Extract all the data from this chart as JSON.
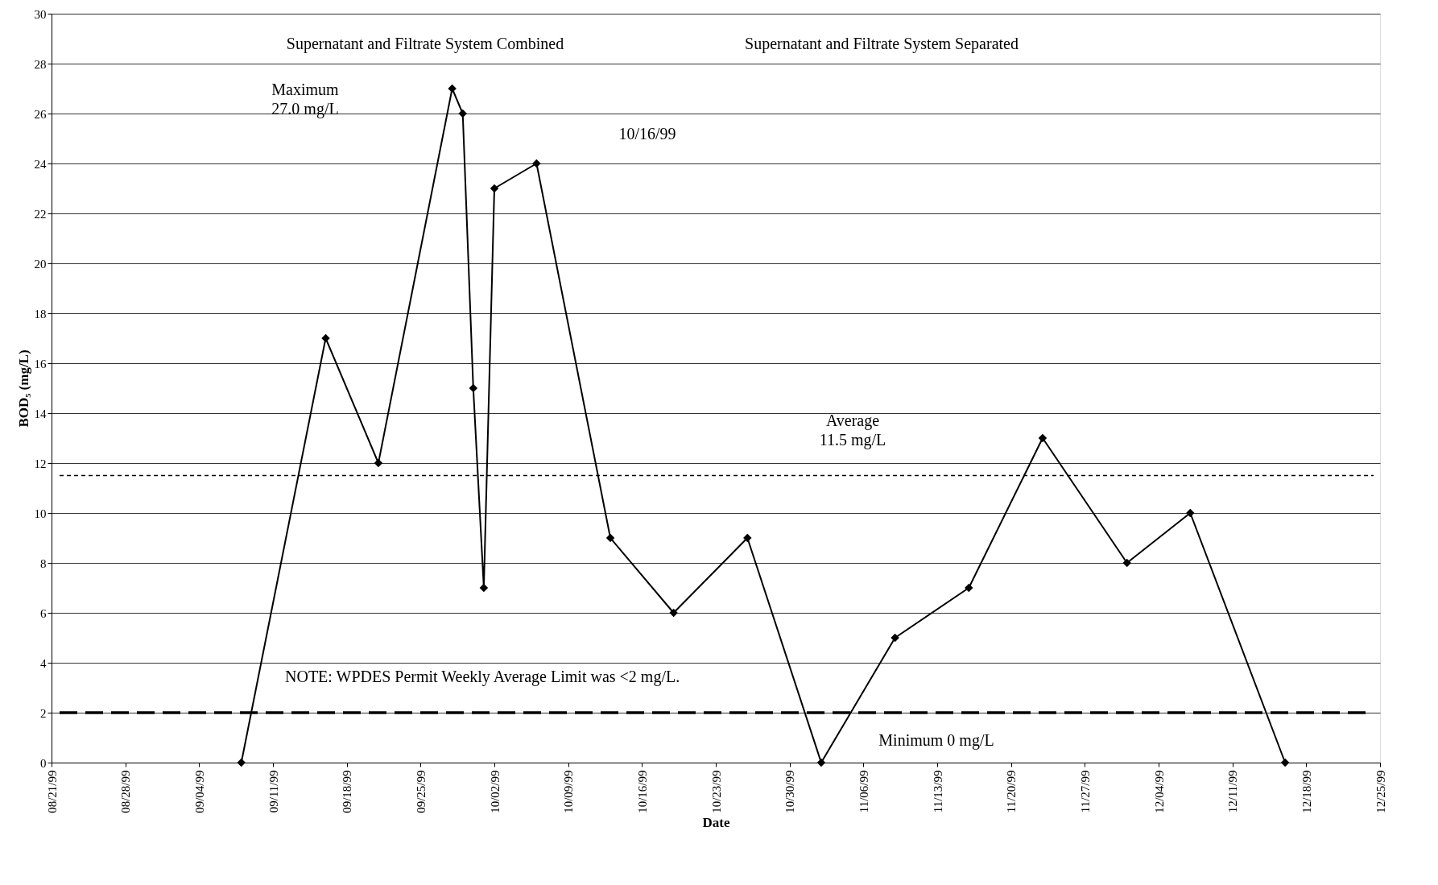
{
  "chart_data": {
    "type": "line",
    "xlabel": "Date",
    "ylabel": "BOD₅ (mg/L)",
    "x": [
      "1999-09-08",
      "1999-09-16",
      "1999-09-21",
      "1999-09-28",
      "1999-09-29",
      "1999-09-30",
      "1999-10-01",
      "1999-10-02",
      "1999-10-06",
      "1999-10-13",
      "1999-10-19",
      "1999-10-26",
      "1999-11-02",
      "1999-11-09",
      "1999-11-16",
      "1999-11-23",
      "1999-12-01",
      "1999-12-07",
      "1999-12-16"
    ],
    "series": [
      {
        "color": "#000000",
        "values": [
          0,
          17,
          12,
          27,
          26,
          15,
          7,
          23,
          24,
          9,
          6,
          9,
          0,
          5,
          7,
          13,
          8,
          10,
          0
        ]
      }
    ],
    "xlim": [
      "1999-08-21",
      "1999-12-25"
    ],
    "xticks": [
      {
        "value": "1999-08-21",
        "label": "08/21/99"
      },
      {
        "value": "1999-08-28",
        "label": "08/28/99"
      },
      {
        "value": "1999-09-04",
        "label": "09/04/99"
      },
      {
        "value": "1999-09-11",
        "label": "09/11/99"
      },
      {
        "value": "1999-09-18",
        "label": "09/18/99"
      },
      {
        "value": "1999-09-25",
        "label": "09/25/99"
      },
      {
        "value": "1999-10-02",
        "label": "10/02/99"
      },
      {
        "value": "1999-10-09",
        "label": "10/09/99"
      },
      {
        "value": "1999-10-16",
        "label": "10/16/99"
      },
      {
        "value": "1999-10-23",
        "label": "10/23/99"
      },
      {
        "value": "1999-10-30",
        "label": "10/30/99"
      },
      {
        "value": "1999-11-06",
        "label": "11/06/99"
      },
      {
        "value": "1999-11-13",
        "label": "11/13/99"
      },
      {
        "value": "1999-11-20",
        "label": "11/20/99"
      },
      {
        "value": "1999-11-27",
        "label": "11/27/99"
      },
      {
        "value": "1999-12-04",
        "label": "12/04/99"
      },
      {
        "value": "1999-12-11",
        "label": "12/11/99"
      },
      {
        "value": "1999-12-18",
        "label": "12/18/99"
      },
      {
        "value": "1999-12-25",
        "label": "12/25/99"
      }
    ],
    "ylim": [
      0,
      30
    ],
    "yticks": [
      0,
      2,
      4,
      6,
      8,
      10,
      12,
      14,
      16,
      18,
      20,
      22,
      24,
      26,
      28,
      30
    ],
    "grid": "y",
    "marker": "diamond",
    "line_style": "solid",
    "ref_lines": [
      {
        "axis": "y",
        "value": 11.5,
        "label": "Average\n11.5 mg/L",
        "line_style": "dashed",
        "color": "#000000"
      },
      {
        "axis": "y",
        "value": 2,
        "label": "NOTE: WPDES Permit Weekly Average Limit was  <2 mg/L.",
        "line_style": "dashed",
        "color": "#000000"
      }
    ],
    "annotations": [
      "Supernatant and Filtrate System Combined",
      "Supernatant and Filtrate System Separated",
      "10/16/99",
      "Maximum\n27.0 mg/L",
      "Minimum 0 mg/L"
    ]
  }
}
